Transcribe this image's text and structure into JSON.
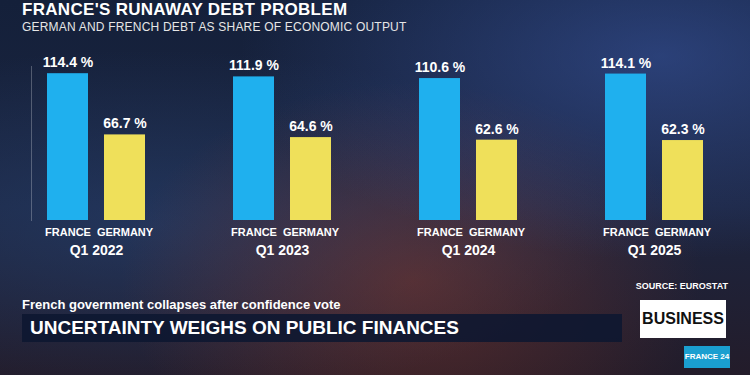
{
  "chart_data": {
    "type": "bar",
    "title": "FRANCE'S RUNAWAY DEBT PROBLEM",
    "subtitle": "GERMAN AND FRENCH DEBT AS SHARE OF ECONOMIC OUTPUT",
    "categories": [
      "Q1 2022",
      "Q1 2023",
      "Q1 2024",
      "Q1 2025"
    ],
    "series": [
      {
        "name": "FRANCE",
        "color": "#1fb0ee",
        "values": [
          114.4,
          111.9,
          110.6,
          114.1
        ],
        "value_labels": [
          "114.4 %",
          "111.9 %",
          "110.6 %",
          "114.1 %"
        ]
      },
      {
        "name": "GERMANY",
        "color": "#efe05a",
        "values": [
          66.7,
          64.6,
          62.6,
          62.3
        ],
        "value_labels": [
          "66.7 %",
          "64.6 %",
          "62.6 %",
          "62.3 %"
        ]
      }
    ],
    "ylim": [
      0,
      120
    ],
    "grid": false,
    "data_labels": true,
    "tick_labels": "x",
    "source": "SOURCE: EUROSTAT"
  },
  "banner": {
    "headline": "French government collapses after confidence vote",
    "title": "UNCERTAINTY WEIGHS ON PUBLIC FINANCES",
    "section": "BUSINESS",
    "logo": "FRANCE 24"
  }
}
